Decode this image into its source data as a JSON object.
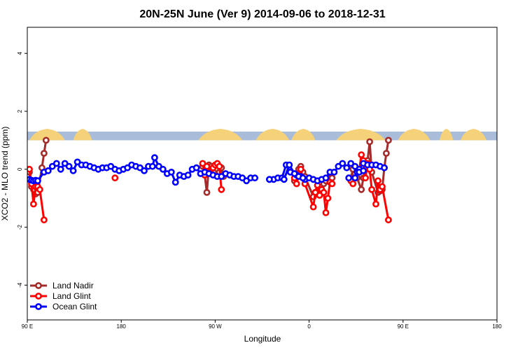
{
  "chart_data": {
    "type": "line",
    "title": "20N-25N June (Ver 9)   2014-09-06 to 2018-12-31",
    "xlabel": "Longitude",
    "ylabel": "XCO2 - MLO trend (ppm)",
    "xlim": [
      90,
      450
    ],
    "ylim": [
      -5.2,
      4.9
    ],
    "x_ticks": [
      {
        "value": 90,
        "label": "90 E"
      },
      {
        "value": 180,
        "label": "180"
      },
      {
        "value": 270,
        "label": "90 W"
      },
      {
        "value": 360,
        "label": "0"
      },
      {
        "value": 450,
        "label": "90 E"
      },
      {
        "value": 540,
        "label": "180"
      }
    ],
    "y_ticks": [
      {
        "value": -4,
        "label": "-4"
      },
      {
        "value": -2,
        "label": "-2"
      },
      {
        "value": 0,
        "label": "0"
      },
      {
        "value": 2,
        "label": "2"
      },
      {
        "value": 4,
        "label": "4"
      }
    ],
    "x_ticks_axis_range": [
      90,
      540
    ],
    "legend_position": "bottom-left",
    "land_band": {
      "ymin": 1.0,
      "ymax": 1.3,
      "ocean_color": "#a9bcd9",
      "land_color": "#f5d27a",
      "land_segments": [
        [
          92,
          126
        ],
        [
          134,
          152
        ],
        [
          254,
          296
        ],
        [
          309,
          341
        ],
        [
          343,
          366
        ],
        [
          386,
          433
        ],
        [
          445,
          476
        ],
        [
          485,
          498
        ],
        [
          505,
          530
        ]
      ]
    },
    "series": [
      {
        "name": "Land Nadir",
        "color": "#a52a2a",
        "points": [
          [
            92,
            -0.1
          ],
          [
            94,
            -0.6
          ],
          [
            96,
            -0.7
          ],
          [
            98,
            -0.85
          ],
          [
            100,
            -0.8
          ],
          [
            104,
            0.05
          ],
          [
            106,
            0.55
          ],
          [
            108,
            1.0
          ],
          [
            258,
            0.1
          ],
          [
            260,
            -0.2
          ],
          [
            262,
            -0.8
          ],
          [
            264,
            0.15
          ],
          [
            266,
            0.1
          ],
          [
            268,
            -0.1
          ],
          [
            270,
            -0.05
          ],
          [
            272,
            0.0
          ],
          [
            274,
            -0.1
          ],
          [
            276,
            0.05
          ],
          [
            278,
            -0.25
          ],
          [
            346,
            -0.4
          ],
          [
            348,
            -0.15
          ],
          [
            350,
            0.0
          ],
          [
            352,
            0.1
          ],
          [
            354,
            -0.1
          ],
          [
            356,
            -0.25
          ],
          [
            364,
            -0.95
          ],
          [
            366,
            -0.8
          ],
          [
            368,
            -0.75
          ],
          [
            370,
            -0.8
          ],
          [
            372,
            -0.7
          ],
          [
            374,
            -0.5
          ],
          [
            376,
            -0.4
          ],
          [
            378,
            -0.3
          ],
          [
            380,
            -0.3
          ],
          [
            382,
            -0.3
          ],
          [
            400,
            -0.3
          ],
          [
            402,
            0.0
          ],
          [
            404,
            -0.15
          ],
          [
            406,
            -0.3
          ],
          [
            410,
            -0.7
          ],
          [
            412,
            -0.3
          ],
          [
            414,
            0.0
          ],
          [
            416,
            0.3
          ],
          [
            418,
            0.95
          ],
          [
            420,
            -0.1
          ],
          [
            426,
            -0.8
          ],
          [
            428,
            -0.75
          ],
          [
            430,
            -0.7
          ],
          [
            432,
            0.05
          ],
          [
            434,
            0.55
          ],
          [
            436,
            1.0
          ]
        ]
      },
      {
        "name": "Land Glint",
        "color": "#ff0000",
        "points": [
          [
            92,
            0.0
          ],
          [
            94,
            -0.5
          ],
          [
            96,
            -1.2
          ],
          [
            98,
            -0.6
          ],
          [
            100,
            -0.6
          ],
          [
            102,
            -0.7
          ],
          [
            106,
            -1.75
          ],
          [
            174,
            -0.3
          ],
          [
            258,
            0.2
          ],
          [
            260,
            -0.2
          ],
          [
            262,
            0.1
          ],
          [
            264,
            -0.1
          ],
          [
            266,
            -0.15
          ],
          [
            268,
            0.05
          ],
          [
            270,
            0.15
          ],
          [
            272,
            0.2
          ],
          [
            274,
            0.1
          ],
          [
            276,
            -0.7
          ],
          [
            346,
            -0.3
          ],
          [
            348,
            -0.5
          ],
          [
            350,
            -0.2
          ],
          [
            352,
            0.0
          ],
          [
            354,
            -0.3
          ],
          [
            356,
            -0.5
          ],
          [
            364,
            -1.3
          ],
          [
            366,
            -0.8
          ],
          [
            368,
            -0.55
          ],
          [
            370,
            -0.9
          ],
          [
            372,
            -0.7
          ],
          [
            374,
            -0.8
          ],
          [
            376,
            -1.5
          ],
          [
            378,
            -1.0
          ],
          [
            380,
            -0.45
          ],
          [
            382,
            -0.5
          ],
          [
            398,
            -0.3
          ],
          [
            400,
            -0.4
          ],
          [
            402,
            -0.5
          ],
          [
            406,
            0.0
          ],
          [
            408,
            -0.05
          ],
          [
            410,
            0.5
          ],
          [
            412,
            0.3
          ],
          [
            414,
            -0.3
          ],
          [
            416,
            0.2
          ],
          [
            418,
            0.0
          ],
          [
            420,
            -0.7
          ],
          [
            424,
            -1.2
          ],
          [
            426,
            -0.4
          ],
          [
            428,
            -0.7
          ],
          [
            430,
            -0.6
          ],
          [
            436,
            -1.75
          ]
        ]
      },
      {
        "name": "Ocean Glint",
        "color": "#0000ff",
        "points": [
          [
            92,
            -0.35
          ],
          [
            94,
            -0.38
          ],
          [
            96,
            -0.4
          ],
          [
            98,
            -0.38
          ],
          [
            100,
            -0.4
          ],
          [
            106,
            -0.1
          ],
          [
            110,
            -0.05
          ],
          [
            114,
            0.1
          ],
          [
            118,
            0.2
          ],
          [
            122,
            0.0
          ],
          [
            126,
            0.2
          ],
          [
            130,
            0.1
          ],
          [
            134,
            -0.05
          ],
          [
            138,
            0.25
          ],
          [
            142,
            0.15
          ],
          [
            146,
            0.15
          ],
          [
            150,
            0.1
          ],
          [
            154,
            0.05
          ],
          [
            158,
            0.0
          ],
          [
            162,
            0.05
          ],
          [
            166,
            0.05
          ],
          [
            170,
            0.1
          ],
          [
            174,
            0.0
          ],
          [
            178,
            -0.05
          ],
          [
            182,
            0.0
          ],
          [
            186,
            0.05
          ],
          [
            190,
            0.15
          ],
          [
            194,
            0.1
          ],
          [
            198,
            0.05
          ],
          [
            202,
            -0.05
          ],
          [
            206,
            0.1
          ],
          [
            210,
            0.1
          ],
          [
            212,
            0.4
          ],
          [
            216,
            0.1
          ],
          [
            220,
            0.0
          ],
          [
            224,
            -0.15
          ],
          [
            228,
            -0.1
          ],
          [
            232,
            -0.45
          ],
          [
            236,
            -0.2
          ],
          [
            240,
            -0.25
          ],
          [
            244,
            -0.2
          ],
          [
            248,
            0.0
          ],
          [
            252,
            0.05
          ],
          [
            256,
            -0.15
          ],
          [
            260,
            -0.1
          ],
          [
            264,
            -0.15
          ],
          [
            268,
            -0.2
          ],
          [
            272,
            -0.25
          ],
          [
            276,
            -0.25
          ],
          [
            280,
            -0.15
          ],
          [
            284,
            -0.2
          ],
          [
            288,
            -0.25
          ],
          [
            292,
            -0.25
          ],
          [
            296,
            -0.3
          ],
          [
            300,
            -0.4
          ],
          [
            304,
            -0.3
          ],
          [
            308,
            -0.3
          ],
          [
            322,
            -0.35
          ],
          [
            326,
            -0.35
          ],
          [
            330,
            -0.3
          ],
          [
            334,
            -0.3
          ],
          [
            338,
            0.15
          ],
          [
            342,
            -0.1
          ],
          [
            348,
            -0.2
          ],
          [
            352,
            -0.25
          ],
          [
            356,
            -0.35
          ],
          [
            360,
            -0.3
          ],
          [
            364,
            -0.35
          ],
          [
            368,
            -0.4
          ],
          [
            372,
            -0.35
          ],
          [
            376,
            -0.3
          ],
          [
            380,
            -0.1
          ],
          [
            384,
            -0.1
          ],
          [
            388,
            0.1
          ],
          [
            392,
            0.2
          ],
          [
            396,
            0.05
          ],
          [
            400,
            0.2
          ],
          [
            404,
            0.1
          ],
          [
            408,
            0.0
          ],
          [
            412,
            0.2
          ],
          [
            416,
            0.15
          ],
          [
            420,
            0.15
          ],
          [
            424,
            0.15
          ],
          [
            428,
            0.1
          ],
          [
            432,
            0.05
          ],
          [
            322,
            -0.35
          ],
          [
            336,
            -0.35
          ],
          [
            341,
            0.15
          ],
          [
            346,
            -0.15
          ],
          [
            350,
            -0.25
          ],
          [
            354,
            -0.3
          ],
          [
            398,
            -0.3
          ],
          [
            404,
            -0.3
          ],
          [
            406,
            -0.1
          ],
          [
            408,
            -0.1
          ],
          [
            412,
            -0.05
          ]
        ]
      }
    ]
  }
}
